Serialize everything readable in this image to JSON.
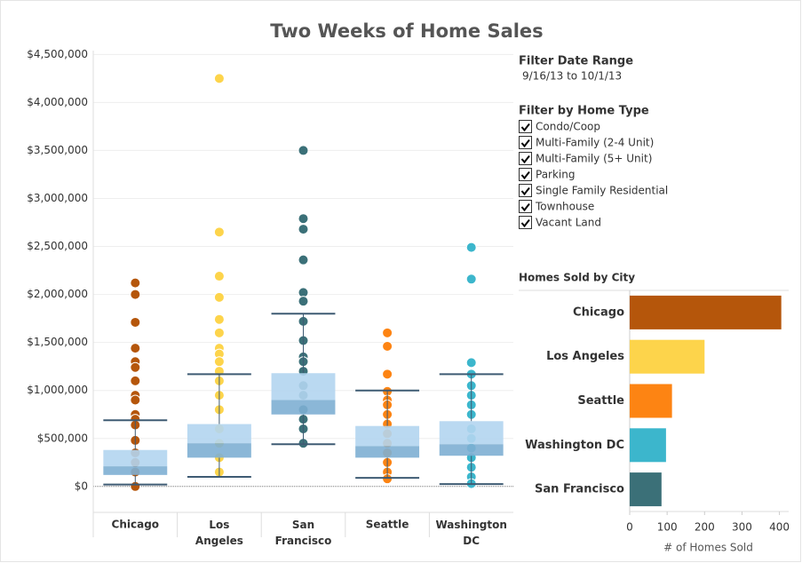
{
  "title": "Two Weeks of Home Sales",
  "filters": {
    "date_title": "Filter Date Range",
    "date_range": "9/16/13 to 10/1/13",
    "type_title": "Filter by Home Type",
    "types": [
      "Condo/Coop",
      "Multi-Family (2-4 Unit)",
      "Multi-Family (5+ Unit)",
      "Parking",
      "Single Family Residential",
      "Townhouse",
      "Vacant Land"
    ],
    "checked": [
      true,
      true,
      true,
      true,
      true,
      true,
      true
    ]
  },
  "chart_data": [
    {
      "type": "box",
      "categories": [
        "Chicago",
        "Los Angeles",
        "San Francisco",
        "Seattle",
        "Washington DC"
      ],
      "colors": [
        "#b5560b",
        "#fdd44b",
        "#3b7078",
        "#fd8413",
        "#3cb6cc"
      ],
      "box_colors": {
        "upper": "#b3d5f0",
        "lower": "#7eafd3",
        "whisker": "#3e5b73"
      },
      "boxes": [
        {
          "low": 20000,
          "q1": 120000,
          "median": 210000,
          "q3": 380000,
          "high": 690000
        },
        {
          "low": 100000,
          "q1": 300000,
          "median": 450000,
          "q3": 650000,
          "high": 1170000
        },
        {
          "low": 440000,
          "q1": 750000,
          "median": 900000,
          "q3": 1180000,
          "high": 1800000
        },
        {
          "low": 90000,
          "q1": 300000,
          "median": 420000,
          "q3": 630000,
          "high": 1000000
        },
        {
          "low": 25000,
          "q1": 320000,
          "median": 440000,
          "q3": 680000,
          "high": 1170000
        }
      ],
      "points": [
        [
          2120000,
          2000000,
          1710000,
          1440000,
          1300000,
          1240000,
          1100000,
          950000,
          900000,
          750000,
          700000,
          640000,
          480000,
          350000,
          250000,
          150000,
          0
        ],
        [
          4250000,
          2650000,
          2190000,
          1970000,
          1740000,
          1600000,
          1440000,
          1380000,
          1300000,
          1200000,
          1100000,
          950000,
          800000,
          600000,
          450000,
          300000,
          150000
        ],
        [
          3500000,
          2790000,
          2680000,
          2360000,
          2020000,
          1930000,
          1720000,
          1520000,
          1350000,
          1300000,
          1200000,
          1050000,
          950000,
          800000,
          700000,
          600000,
          450000
        ],
        [
          1600000,
          1460000,
          1170000,
          990000,
          900000,
          850000,
          750000,
          650000,
          550000,
          450000,
          350000,
          250000,
          150000,
          80000
        ],
        [
          2490000,
          2160000,
          1290000,
          1170000,
          1050000,
          950000,
          850000,
          750000,
          600000,
          500000,
          400000,
          300000,
          200000,
          100000,
          30000
        ]
      ],
      "ylim": [
        -270000,
        4540000
      ],
      "yticks": [
        {
          "value": 0,
          "label": "$0"
        },
        {
          "value": 500000,
          "label": "$500,000"
        },
        {
          "value": 1000000,
          "label": "$1,000,000"
        },
        {
          "value": 1500000,
          "label": "$1,500,000"
        },
        {
          "value": 2000000,
          "label": "$2,000,000"
        },
        {
          "value": 2500000,
          "label": "$2,500,000"
        },
        {
          "value": 3000000,
          "label": "$3,000,000"
        },
        {
          "value": 3500000,
          "label": "$3,500,000"
        },
        {
          "value": 4000000,
          "label": "$4,000,000"
        },
        {
          "value": 4500000,
          "label": "$4,500,000"
        }
      ],
      "grid": true
    },
    {
      "type": "bar",
      "orientation": "horizontal",
      "title": "Homes Sold by City",
      "categories": [
        "Chicago",
        "Los Angeles",
        "Seattle",
        "Washington DC",
        "San Francisco"
      ],
      "values": [
        405,
        200,
        113,
        97,
        85
      ],
      "colors": [
        "#b5560b",
        "#fdd44b",
        "#fd8413",
        "#3cb6cc",
        "#3b7078"
      ],
      "x_label": "# of Homes Sold",
      "xlim": [
        0,
        420
      ],
      "xticks": [
        0,
        100,
        200,
        300,
        400
      ]
    }
  ]
}
